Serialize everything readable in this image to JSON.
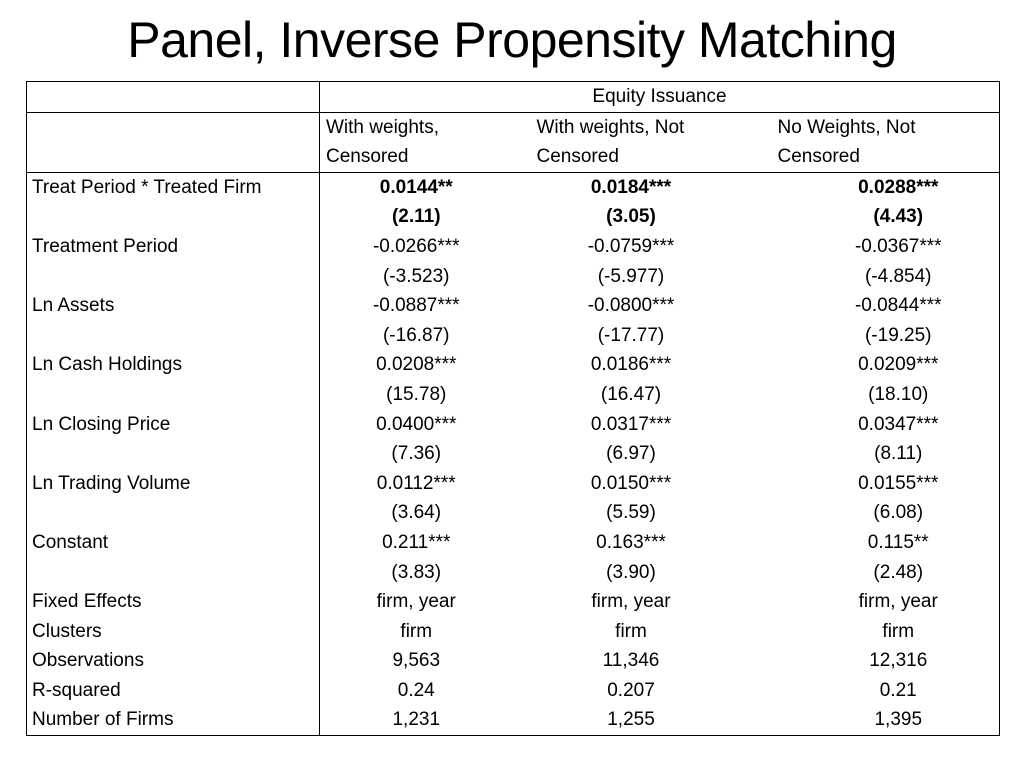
{
  "title": "Panel, Inverse Propensity Matching",
  "table": {
    "group_header": "Equity Issuance",
    "columns": [
      [
        "With weights,",
        "Censored"
      ],
      [
        "With weights, Not",
        "Censored"
      ],
      [
        "No Weights, Not",
        "Censored"
      ]
    ],
    "rows": [
      {
        "label": "Treat Period * Treated Firm",
        "values": [
          "0.0144**",
          "0.0184***",
          "0.0288***"
        ],
        "bold": true
      },
      {
        "label": "",
        "values": [
          "(2.11)",
          "(3.05)",
          "(4.43)"
        ],
        "bold": true
      },
      {
        "label": "Treatment Period",
        "values": [
          "-0.0266***",
          "-0.0759***",
          "-0.0367***"
        ]
      },
      {
        "label": "",
        "values": [
          "(-3.523)",
          "(-5.977)",
          "(-4.854)"
        ]
      },
      {
        "label": "Ln Assets",
        "values": [
          "-0.0887***",
          "-0.0800***",
          "-0.0844***"
        ]
      },
      {
        "label": "",
        "values": [
          "(-16.87)",
          "(-17.77)",
          "(-19.25)"
        ]
      },
      {
        "label": "Ln Cash Holdings",
        "values": [
          "0.0208***",
          "0.0186***",
          "0.0209***"
        ]
      },
      {
        "label": "",
        "values": [
          "(15.78)",
          "(16.47)",
          "(18.10)"
        ]
      },
      {
        "label": "Ln Closing Price",
        "values": [
          "0.0400***",
          "0.0317***",
          "0.0347***"
        ]
      },
      {
        "label": "",
        "values": [
          "(7.36)",
          "(6.97)",
          "(8.11)"
        ]
      },
      {
        "label": "Ln Trading Volume",
        "values": [
          "0.0112***",
          "0.0150***",
          "0.0155***"
        ]
      },
      {
        "label": "",
        "values": [
          "(3.64)",
          "(5.59)",
          "(6.08)"
        ]
      },
      {
        "label": "Constant",
        "values": [
          "0.211***",
          "0.163***",
          "0.115**"
        ]
      },
      {
        "label": "",
        "values": [
          "(3.83)",
          "(3.90)",
          "(2.48)"
        ]
      },
      {
        "label": "Fixed Effects",
        "values": [
          "firm, year",
          "firm, year",
          "firm, year"
        ]
      },
      {
        "label": "Clusters",
        "values": [
          "firm",
          "firm",
          "firm"
        ]
      },
      {
        "label": "Observations",
        "values": [
          "9,563",
          "11,346",
          "12,316"
        ]
      },
      {
        "label": "R-squared",
        "values": [
          "0.24",
          "0.207",
          "0.21"
        ]
      },
      {
        "label": "Number of Firms",
        "values": [
          "1,231",
          "1,255",
          "1,395"
        ]
      }
    ]
  }
}
